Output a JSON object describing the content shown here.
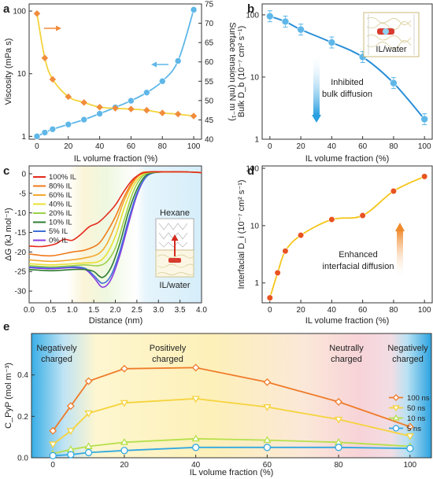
{
  "chart_data": [
    {
      "panel": "a",
      "type": "scatter",
      "xlabel": "IL volume fraction (%)",
      "ylabel_left": "Viscosity (mPa s)",
      "ylabel_right": "Surface tension (mN m⁻¹)",
      "x_ticks": [
        "0",
        "20",
        "40",
        "60",
        "80",
        "100"
      ],
      "y_left_ticks": [
        "1",
        "10",
        "100"
      ],
      "y_right_ticks": [
        "40",
        "45",
        "50",
        "55",
        "60",
        "65",
        "70",
        "75"
      ],
      "xlim": [
        -5,
        105
      ],
      "ylim_left": [
        0.9,
        130
      ],
      "y_left_scale": "log",
      "ylim_right": [
        40,
        75
      ],
      "series": [
        {
          "axis": "left",
          "color": "#5fb7e8",
          "x": [
            0,
            5,
            10,
            20,
            30,
            40,
            50,
            60,
            70,
            80,
            90,
            100
          ],
          "y": [
            1.0,
            1.15,
            1.3,
            1.55,
            1.85,
            2.3,
            2.9,
            3.7,
            5.0,
            7.6,
            16,
            105
          ]
        },
        {
          "axis": "right",
          "color": "#f08c3c",
          "x": [
            0,
            5,
            10,
            20,
            30,
            40,
            50,
            60,
            70,
            80,
            90,
            100
          ],
          "y": [
            72.5,
            61.0,
            55.5,
            51.0,
            49.5,
            48.3,
            48.0,
            47.8,
            47.5,
            46.8,
            46.5,
            46.0
          ]
        }
      ]
    },
    {
      "panel": "b",
      "type": "scatter",
      "xlabel": "IL volume fraction (%)",
      "ylabel": "Bulk D_b (10⁻⁷ cm² s⁻¹)",
      "x_ticks": [
        "0",
        "20",
        "40",
        "60",
        "80",
        "100"
      ],
      "y_ticks": [
        "1",
        "10",
        "100"
      ],
      "xlim": [
        -5,
        105
      ],
      "ylim": [
        1,
        150
      ],
      "y_scale": "log",
      "annotation": [
        "Inhibited",
        "bulk diffusion"
      ],
      "inset_label": "IL/water",
      "series": [
        {
          "color": "#5fb7e8",
          "x": [
            0,
            10,
            20,
            40,
            60,
            80,
            100
          ],
          "y": [
            95,
            78,
            58,
            36,
            21,
            8.0,
            2.1
          ]
        }
      ]
    },
    {
      "panel": "c",
      "type": "line",
      "xlabel": "Distance (nm)",
      "ylabel": "ΔG (kJ mol⁻¹)",
      "x_ticks": [
        "0.0",
        "0.5",
        "1.0",
        "1.5",
        "2.0",
        "2.5",
        "3.0",
        "3.5",
        "4.0"
      ],
      "y_ticks": [
        "0",
        "-5",
        "-10",
        "-15",
        "-20",
        "-25",
        "-30"
      ],
      "xlim": [
        0,
        4
      ],
      "ylim": [
        -33,
        2
      ],
      "inset_labels": [
        "Hexane",
        "IL/water"
      ],
      "series": [
        {
          "name": "100% IL",
          "color": "#e32a1c",
          "x": [
            0,
            0.3,
            0.6,
            0.8,
            1.0,
            1.2,
            1.4,
            1.6,
            1.8,
            2.0,
            2.2,
            2.4,
            2.6,
            2.8,
            3.2,
            3.6,
            4.0
          ],
          "y": [
            -18.5,
            -18.6,
            -18.0,
            -16.8,
            -17.0,
            -15.5,
            -13.5,
            -12.5,
            -10.5,
            -8.0,
            -4.5,
            -1.5,
            0,
            0.5,
            0.5,
            0.5,
            0.3
          ]
        },
        {
          "name": "80% IL",
          "color": "#f07a1a",
          "x": [
            0,
            0.5,
            1.0,
            1.3,
            1.6,
            1.8,
            2.0,
            2.2,
            2.4,
            2.6,
            2.8,
            3.2,
            3.6,
            4.0
          ],
          "y": [
            -20.5,
            -21.0,
            -20.0,
            -19.5,
            -18.0,
            -15.0,
            -11.0,
            -6.0,
            -2.0,
            0.2,
            0.5,
            0.5,
            0.5,
            0.3
          ]
        },
        {
          "name": "60% IL",
          "color": "#f4a82e",
          "x": [
            0,
            0.5,
            1.0,
            1.3,
            1.6,
            1.8,
            2.0,
            2.2,
            2.4,
            2.6,
            2.8,
            3.2,
            3.6,
            4.0
          ],
          "y": [
            -22.0,
            -22.4,
            -22.0,
            -21.5,
            -20.5,
            -18.0,
            -13.0,
            -7.0,
            -2.5,
            0,
            0.5,
            0.5,
            0.5,
            0.3
          ]
        },
        {
          "name": "40% IL",
          "color": "#e8e033",
          "x": [
            0,
            0.5,
            1.0,
            1.3,
            1.6,
            1.8,
            2.0,
            2.2,
            2.4,
            2.6,
            2.8,
            3.2,
            3.6,
            4.0
          ],
          "y": [
            -23.0,
            -23.3,
            -23.0,
            -22.8,
            -22.5,
            -20.5,
            -16.0,
            -9.0,
            -3.5,
            -0.5,
            0.5,
            0.5,
            0.5,
            0.3
          ]
        },
        {
          "name": "20% IL",
          "color": "#9bd14a",
          "x": [
            0,
            0.5,
            1.0,
            1.3,
            1.6,
            1.8,
            2.0,
            2.2,
            2.4,
            2.6,
            2.8,
            3.2,
            3.6,
            4.0
          ],
          "y": [
            -23.5,
            -23.8,
            -23.5,
            -23.3,
            -23.5,
            -22.5,
            -19.0,
            -12.0,
            -5.0,
            -1.0,
            0.3,
            0.5,
            0.5,
            0.3
          ]
        },
        {
          "name": "10% IL",
          "color": "#2e7d32",
          "x": [
            0,
            0.5,
            1.0,
            1.3,
            1.5,
            1.7,
            1.9,
            2.1,
            2.3,
            2.5,
            2.7,
            2.9,
            3.2,
            3.6,
            4.0
          ],
          "y": [
            -24.5,
            -24.8,
            -24.5,
            -24.5,
            -25.0,
            -26.5,
            -24.0,
            -18.0,
            -10.0,
            -4.0,
            -0.5,
            0.3,
            0.5,
            0.5,
            0.3
          ]
        },
        {
          "name": "5% IL",
          "color": "#3f6fd8",
          "x": [
            0,
            0.5,
            1.0,
            1.3,
            1.5,
            1.7,
            1.9,
            2.1,
            2.3,
            2.5,
            2.7,
            2.9,
            3.2,
            3.6,
            4.0
          ],
          "y": [
            -23.8,
            -24.0,
            -23.8,
            -24.2,
            -26.0,
            -28.0,
            -26.0,
            -20.0,
            -12.0,
            -5.0,
            -1.0,
            0.3,
            0.5,
            0.5,
            0.3
          ]
        },
        {
          "name": "0% IL",
          "color": "#8a3ce0",
          "x": [
            0,
            0.5,
            1.0,
            1.3,
            1.5,
            1.7,
            1.9,
            2.1,
            2.3,
            2.5,
            2.7,
            2.9,
            3.2,
            3.6,
            4.0
          ],
          "y": [
            -24.0,
            -24.3,
            -24.0,
            -24.5,
            -26.5,
            -29.0,
            -27.0,
            -21.0,
            -13.0,
            -5.5,
            -1.0,
            0.3,
            0.5,
            0.5,
            0.3
          ]
        }
      ]
    },
    {
      "panel": "d",
      "type": "scatter",
      "xlabel": "IL volume fraction (%)",
      "ylabel": "Interfacial D_i (10⁻⁷ cm² s⁻¹)",
      "x_ticks": [
        "0",
        "20",
        "40",
        "60",
        "80",
        "100"
      ],
      "y_ticks": [
        "1",
        "10",
        "100"
      ],
      "xlim": [
        -5,
        105
      ],
      "ylim": [
        0.45,
        110
      ],
      "y_scale": "log",
      "annotation": [
        "Enhanced",
        "interfacial diffusion"
      ],
      "series": [
        {
          "color": "#f5c518",
          "x": [
            0,
            5,
            10,
            20,
            40,
            60,
            80,
            100
          ],
          "y": [
            0.55,
            1.5,
            3.6,
            6.8,
            12.8,
            15.0,
            40,
            72
          ]
        }
      ]
    },
    {
      "panel": "e",
      "type": "line",
      "xlabel": "IL volume fraction (%)",
      "ylabel": "C_PyP (mol m⁻³)",
      "x_ticks": [
        "0",
        "20",
        "40",
        "60",
        "80",
        "100"
      ],
      "y_ticks": [
        "0.0",
        "0.2",
        "0.4"
      ],
      "xlim": [
        -6,
        106
      ],
      "ylim": [
        0,
        0.6
      ],
      "region_labels": [
        [
          "Negatively",
          "charged"
        ],
        [
          "Positively",
          "charged"
        ],
        [
          "Neutrally",
          "charged"
        ],
        [
          "Negatively",
          "charged"
        ]
      ],
      "series": [
        {
          "name": "100 ns",
          "color": "#ef7b2a",
          "marker": "diamond",
          "x": [
            0,
            5,
            10,
            20,
            40,
            60,
            80,
            100
          ],
          "y": [
            0.13,
            0.25,
            0.37,
            0.43,
            0.435,
            0.365,
            0.27,
            0.15
          ]
        },
        {
          "name": "50 ns",
          "color": "#f5d33c",
          "marker": "triangle-down",
          "x": [
            0,
            5,
            10,
            20,
            40,
            60,
            80,
            100
          ],
          "y": [
            0.065,
            0.13,
            0.215,
            0.265,
            0.285,
            0.245,
            0.185,
            0.105
          ]
        },
        {
          "name": "10 ns",
          "color": "#b6e04a",
          "marker": "triangle-up",
          "x": [
            0,
            5,
            10,
            20,
            40,
            60,
            80,
            100
          ],
          "y": [
            0.02,
            0.04,
            0.055,
            0.075,
            0.092,
            0.085,
            0.075,
            0.055
          ]
        },
        {
          "name": "5 ns",
          "color": "#32a8e0",
          "marker": "circle",
          "x": [
            0,
            5,
            10,
            20,
            40,
            60,
            80,
            100
          ],
          "y": [
            0.01,
            0.015,
            0.025,
            0.035,
            0.05,
            0.05,
            0.05,
            0.045
          ]
        }
      ]
    }
  ]
}
